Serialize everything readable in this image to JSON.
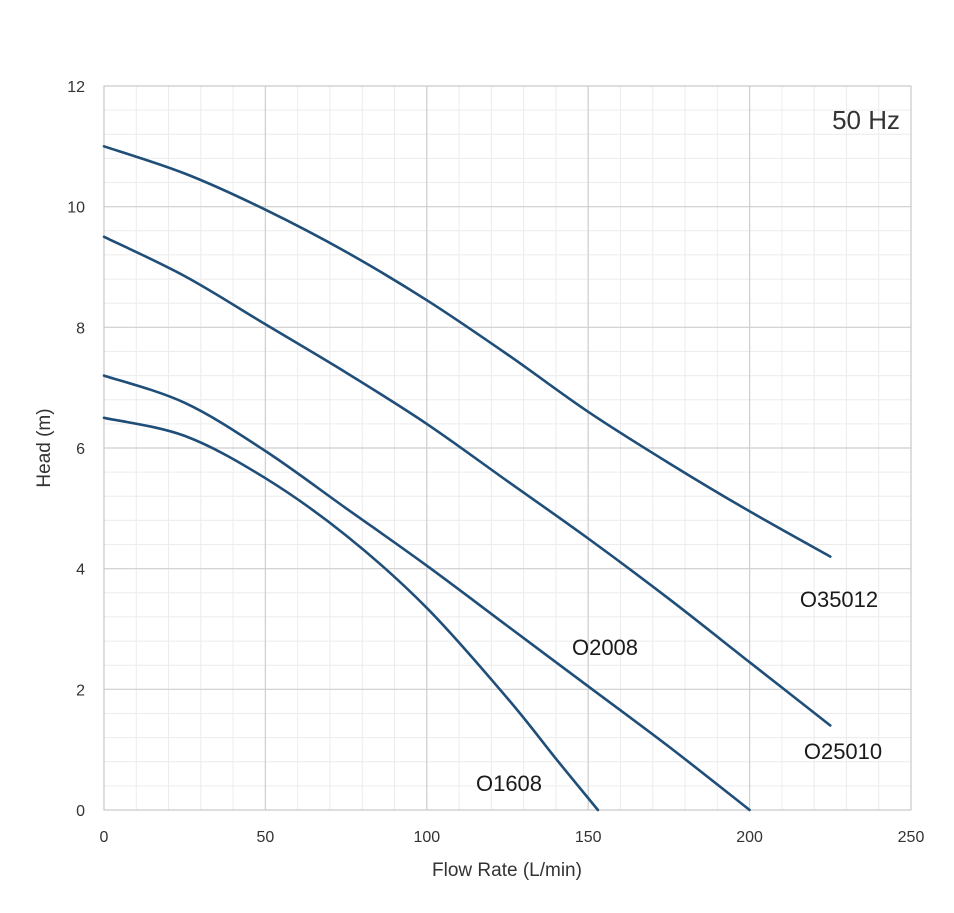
{
  "chart_data": {
    "type": "line",
    "xlabel": "Flow Rate (L/min)",
    "ylabel": "Head (m)",
    "xlim": [
      0,
      250
    ],
    "ylim": [
      0,
      12
    ],
    "xticks": [
      0,
      50,
      100,
      150,
      200,
      250
    ],
    "yticks": [
      0,
      2,
      4,
      6,
      8,
      10,
      12
    ],
    "grid": true,
    "annotation": "50 Hz",
    "line_color": "#1f4e79",
    "series": [
      {
        "name": "O35012",
        "x": [
          0,
          25,
          50,
          75,
          100,
          125,
          150,
          175,
          200,
          225
        ],
        "y": [
          11.0,
          10.55,
          9.95,
          9.25,
          8.45,
          7.55,
          6.6,
          5.75,
          4.95,
          4.2
        ]
      },
      {
        "name": "O25010",
        "x": [
          0,
          25,
          50,
          75,
          100,
          125,
          150,
          175,
          200,
          225
        ],
        "y": [
          9.5,
          8.85,
          8.05,
          7.25,
          6.4,
          5.45,
          4.5,
          3.5,
          2.45,
          1.4
        ]
      },
      {
        "name": "O2008",
        "x": [
          0,
          25,
          50,
          75,
          100,
          125,
          150,
          175,
          200
        ],
        "y": [
          7.2,
          6.75,
          5.95,
          5.0,
          4.05,
          3.05,
          2.05,
          1.05,
          0.0
        ]
      },
      {
        "name": "O1608",
        "x": [
          0,
          25,
          50,
          75,
          100,
          125,
          140,
          153
        ],
        "y": [
          6.5,
          6.2,
          5.5,
          4.55,
          3.35,
          1.85,
          0.85,
          0.0
        ]
      }
    ]
  }
}
